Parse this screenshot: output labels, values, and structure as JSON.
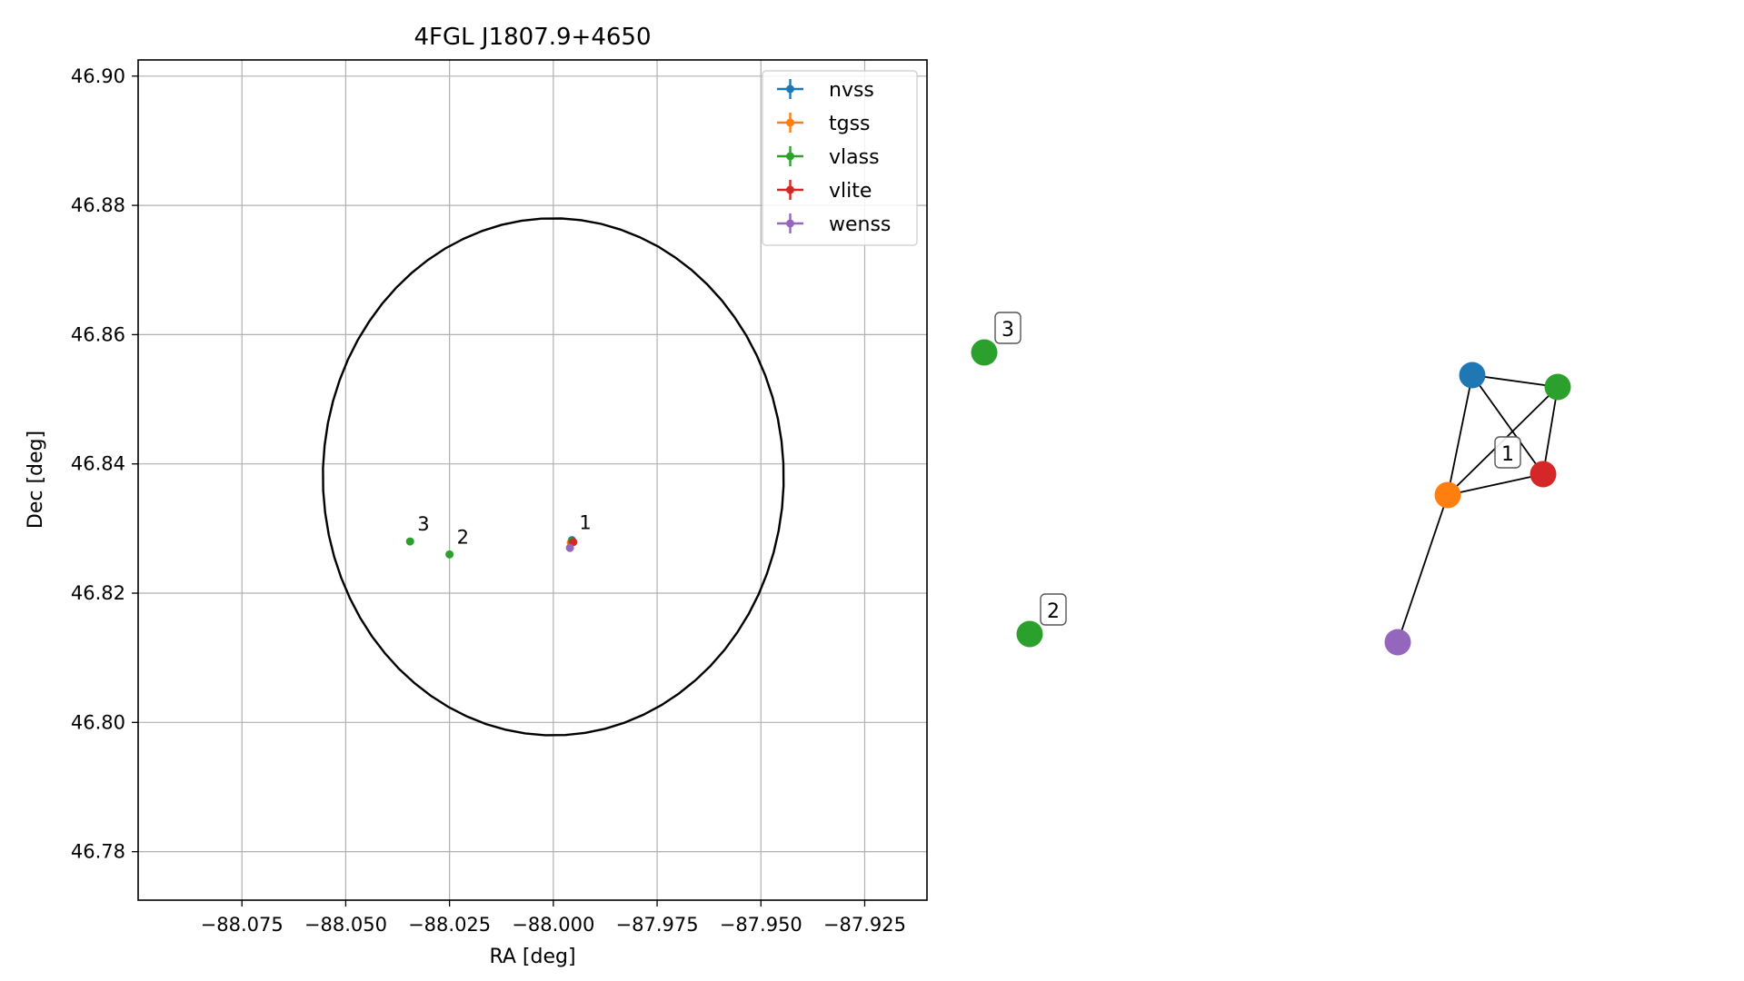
{
  "chart_data": [
    {
      "type": "scatter",
      "title": "4FGL J1807.9+4650",
      "xlabel": "RA [deg]",
      "ylabel": "Dec [deg]",
      "xlim": [
        -88.1,
        -87.91
      ],
      "ylim": [
        46.7725,
        46.9025
      ],
      "grid": true,
      "legend_position": "upper right",
      "x_ticks": [
        {
          "value": -88.075,
          "label": "−88.075"
        },
        {
          "value": -88.05,
          "label": "−88.050"
        },
        {
          "value": -88.025,
          "label": "−88.025"
        },
        {
          "value": -88.0,
          "label": "−88.000"
        },
        {
          "value": -87.975,
          "label": "−87.975"
        },
        {
          "value": -87.95,
          "label": "−87.950"
        },
        {
          "value": -87.925,
          "label": "−87.925"
        }
      ],
      "y_ticks": [
        {
          "value": 46.78,
          "label": "46.78"
        },
        {
          "value": 46.8,
          "label": "46.80"
        },
        {
          "value": 46.82,
          "label": "46.82"
        },
        {
          "value": 46.84,
          "label": "46.84"
        },
        {
          "value": 46.86,
          "label": "46.86"
        },
        {
          "value": 46.88,
          "label": "46.88"
        },
        {
          "value": 46.9,
          "label": "46.90"
        }
      ],
      "ellipse": {
        "center_ra": -88.0,
        "center_dec": 46.838,
        "semi_ra": 0.0555,
        "semi_dec": 0.04,
        "rotation_deg": 8,
        "color": "#000000"
      },
      "series": [
        {
          "name": "nvss",
          "color": "#1f77b4",
          "points": [
            {
              "ra": -87.9955,
              "dec": 46.8282
            }
          ]
        },
        {
          "name": "tgss",
          "color": "#ff7f0e",
          "points": [
            {
              "ra": -87.9958,
              "dec": 46.8278
            }
          ]
        },
        {
          "name": "vlass",
          "color": "#2ca02c",
          "points": [
            {
              "ra": -87.9955,
              "dec": 46.828
            },
            {
              "ra": -88.025,
              "dec": 46.826
            },
            {
              "ra": -88.0345,
              "dec": 46.828
            }
          ]
        },
        {
          "name": "vlite",
          "color": "#d62728",
          "points": [
            {
              "ra": -87.9952,
              "dec": 46.8279
            }
          ]
        },
        {
          "name": "wenss",
          "color": "#9467bd",
          "points": [
            {
              "ra": -87.996,
              "dec": 46.827
            }
          ]
        }
      ],
      "point_labels": [
        {
          "text": "1",
          "ra": -87.9955,
          "dec": 46.8282
        },
        {
          "text": "2",
          "ra": -88.025,
          "dec": 46.826
        },
        {
          "text": "3",
          "ra": -88.0345,
          "dec": 46.828
        }
      ]
    },
    {
      "type": "network",
      "nodes": [
        {
          "id": "n3",
          "color": "#2ca02c",
          "label": "3"
        },
        {
          "id": "n2",
          "color": "#2ca02c",
          "label": "2"
        },
        {
          "id": "nvss",
          "color": "#1f77b4"
        },
        {
          "id": "vlass",
          "color": "#2ca02c"
        },
        {
          "id": "vlite",
          "color": "#d62728"
        },
        {
          "id": "tgss",
          "color": "#ff7f0e"
        },
        {
          "id": "wenss",
          "color": "#9467bd"
        }
      ],
      "edges": [
        [
          "nvss",
          "vlass"
        ],
        [
          "nvss",
          "vlite"
        ],
        [
          "nvss",
          "tgss"
        ],
        [
          "vlass",
          "vlite"
        ],
        [
          "vlass",
          "tgss"
        ],
        [
          "tgss",
          "vlite"
        ],
        [
          "tgss",
          "wenss"
        ]
      ],
      "group_labels": [
        {
          "text": "1"
        }
      ]
    }
  ]
}
